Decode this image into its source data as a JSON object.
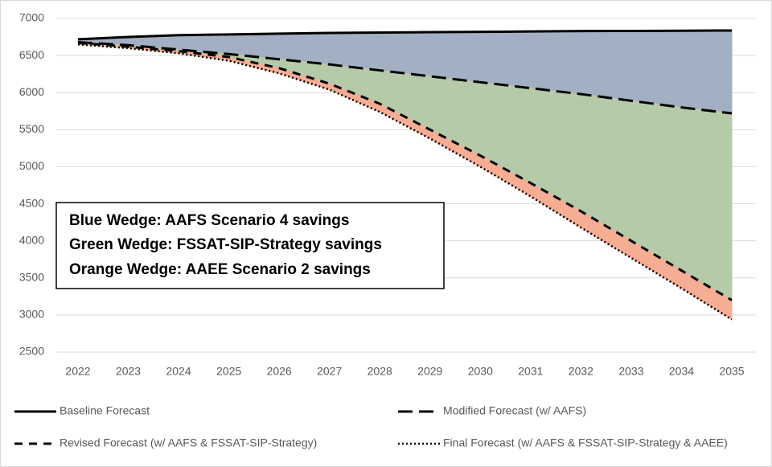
{
  "chart_data": {
    "type": "line",
    "x": [
      2022,
      2023,
      2024,
      2025,
      2026,
      2027,
      2028,
      2029,
      2030,
      2031,
      2032,
      2033,
      2034,
      2035
    ],
    "xlim": [
      2022,
      2035
    ],
    "xticks": [
      2022,
      2023,
      2024,
      2025,
      2026,
      2027,
      2028,
      2029,
      2030,
      2031,
      2032,
      2033,
      2034,
      2035
    ],
    "ylim": [
      2500,
      7000
    ],
    "yticks": [
      2500,
      3000,
      3500,
      4000,
      4500,
      5000,
      5500,
      6000,
      6500,
      7000
    ],
    "grid": true,
    "series": [
      {
        "name": "Baseline Forecast",
        "color": "#000000",
        "dash": "none",
        "area_color": "#a3afc2",
        "values": [
          6720,
          6750,
          6775,
          6785,
          6795,
          6805,
          6810,
          6815,
          6820,
          6825,
          6830,
          6832,
          6835,
          6838
        ]
      },
      {
        "name": "Modified Forecast (w/ AAFS)",
        "color": "#000000",
        "dash": "18,8",
        "area_color": "#b5caa9",
        "values": [
          6680,
          6640,
          6580,
          6520,
          6450,
          6380,
          6300,
          6220,
          6140,
          6060,
          5980,
          5890,
          5800,
          5720
        ]
      },
      {
        "name": "Revised Forecast (w/ AAFS & FSSAT-SIP-Strategy)",
        "color": "#000000",
        "dash": "10,8",
        "area_color": "#f5ad94",
        "values": [
          6670,
          6620,
          6560,
          6480,
          6330,
          6120,
          5850,
          5500,
          5150,
          4780,
          4400,
          4000,
          3600,
          3200
        ]
      },
      {
        "name": "Final Forecast (w/ AAFS & FSSAT-SIP-Strategy & AAEE)",
        "color": "#000000",
        "dash": "2,3",
        "values": [
          6650,
          6600,
          6530,
          6430,
          6260,
          6040,
          5740,
          5380,
          5000,
          4600,
          4180,
          3770,
          3360,
          2940
        ]
      }
    ],
    "annotations": [
      "Blue Wedge: AAFS Scenario 4 savings",
      "Green Wedge: FSSAT-SIP-Strategy savings",
      "Orange Wedge: AAEE Scenario 2 savings"
    ]
  }
}
